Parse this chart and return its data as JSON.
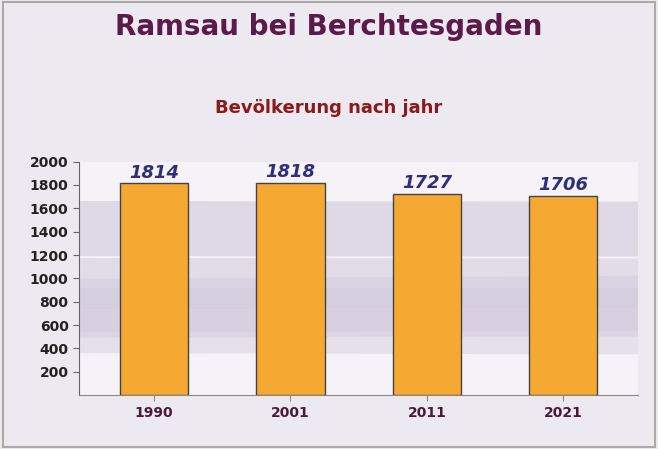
{
  "title": "Ramsau bei Berchtesgaden",
  "subtitle": "Bevölkerung nach jahr",
  "years": [
    "1990",
    "2001",
    "2011",
    "2021"
  ],
  "values": [
    1814,
    1818,
    1727,
    1706
  ],
  "bar_color": "#F5A832",
  "bar_edge_color": "#444444",
  "bar_edge_width": 1.0,
  "title_color": "#5B1A4A",
  "subtitle_color": "#8B1A1A",
  "value_label_color": "#2E2E7A",
  "ytick_color": "#222222",
  "xtick_color": "#4A1A3A",
  "background_color": "#EDE9F0",
  "plot_bg_color": "#F5F2F8",
  "ylim": [
    0,
    2000
  ],
  "yticks": [
    200,
    400,
    600,
    800,
    1000,
    1200,
    1400,
    1600,
    1800,
    2000
  ],
  "title_fontsize": 20,
  "subtitle_fontsize": 13,
  "value_label_fontsize": 13,
  "tick_fontsize": 10,
  "bar_width": 0.5
}
